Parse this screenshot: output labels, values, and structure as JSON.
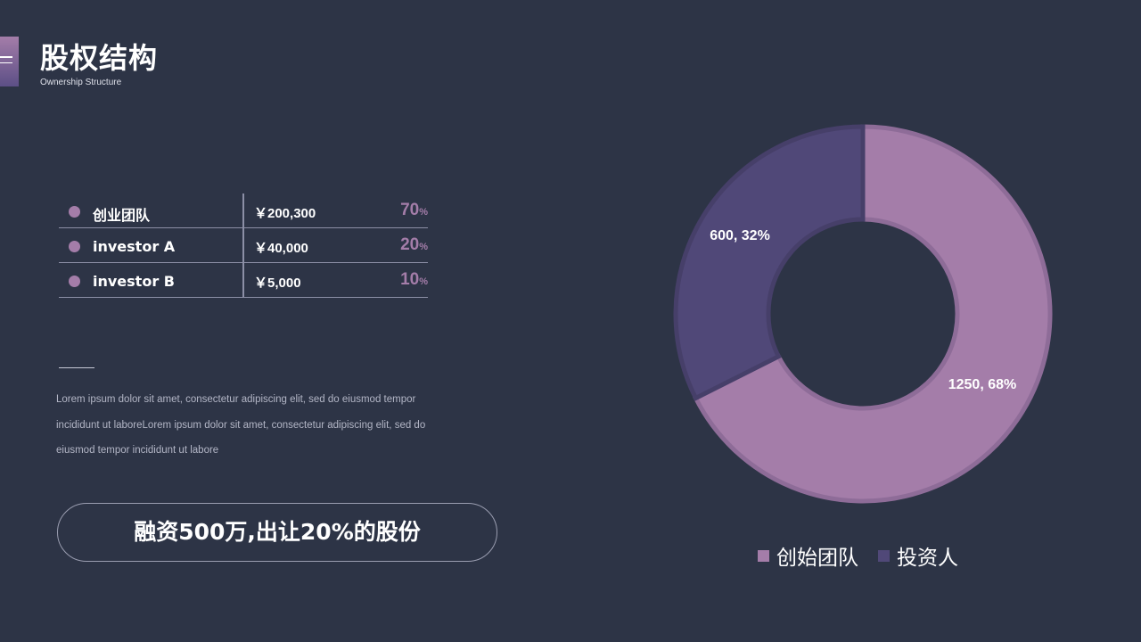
{
  "header": {
    "title": "股权结构",
    "subtitle": "Ownership Structure"
  },
  "equity_table": {
    "rows": [
      {
        "name": "创业团队",
        "amount": "￥200,300",
        "pct": "70",
        "unit": "%"
      },
      {
        "name": "investor A",
        "amount": "￥40,000",
        "pct": "20",
        "unit": "%"
      },
      {
        "name": "investor B",
        "amount": "￥5,000",
        "pct": "10",
        "unit": "%"
      }
    ]
  },
  "description": "Lorem ipsum dolor sit amet, consectetur adipiscing elit, sed do eiusmod tempor incididunt ut laboreLorem ipsum dolor sit amet, consectetur adipiscing elit, sed do eiusmod tempor incididunt ut labore",
  "highlight_pill": {
    "text": "融资500万,出让20%的股份"
  },
  "chart_data": {
    "type": "pie",
    "donut": true,
    "categories": [
      "创始团队",
      "投资人"
    ],
    "values": [
      1250,
      600
    ],
    "percentages": [
      68,
      32
    ],
    "data_labels": [
      "1250, 68%",
      "600, 32%"
    ],
    "colors": [
      "#a47da9",
      "#504878"
    ],
    "legend_position": "bottom"
  },
  "colors": {
    "background": "#2d3446",
    "accent": "#a47da9",
    "secondary": "#504878"
  },
  "icons": {
    "menu": "menu-icon"
  }
}
